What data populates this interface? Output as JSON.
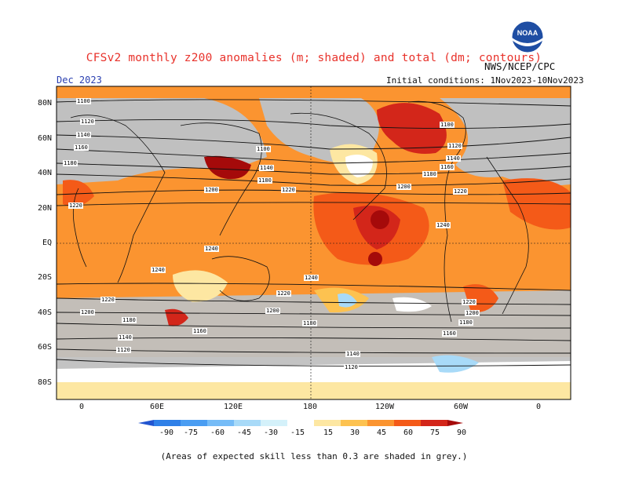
{
  "title": "CFSv2 monthly z200 anomalies (m; shaded) and total (dm; contours)",
  "org": "NWS/NCEP/CPC",
  "month": "Dec 2023",
  "initial_conditions": "Initial conditions: 1Nov2023-10Nov2023",
  "logo_text": "NOAA",
  "lat_labels": [
    "80N",
    "60N",
    "40N",
    "20N",
    "EQ",
    "20S",
    "40S",
    "60S",
    "80S"
  ],
  "lon_labels": [
    "0",
    "60E",
    "120E",
    "180",
    "120W",
    "60W",
    "0"
  ],
  "colorbar": {
    "labels": [
      "-90",
      "-75",
      "-60",
      "-45",
      "-30",
      "-15",
      "15",
      "30",
      "45",
      "60",
      "75",
      "90"
    ],
    "colors": [
      "#2255d0",
      "#2f80e8",
      "#4a9df2",
      "#76bcf7",
      "#a8daf8",
      "#d4f1fa",
      "#ffffff",
      "#fde7a2",
      "#fdc250",
      "#fb9430",
      "#f45a18",
      "#d3261a",
      "#a50a0a"
    ]
  },
  "note": "(Areas of expected skill less than 0.3 are shaded in grey.)",
  "contour_labels": [
    "1100",
    "1120",
    "1140",
    "1160",
    "1180",
    "1200",
    "1220",
    "1240"
  ]
}
